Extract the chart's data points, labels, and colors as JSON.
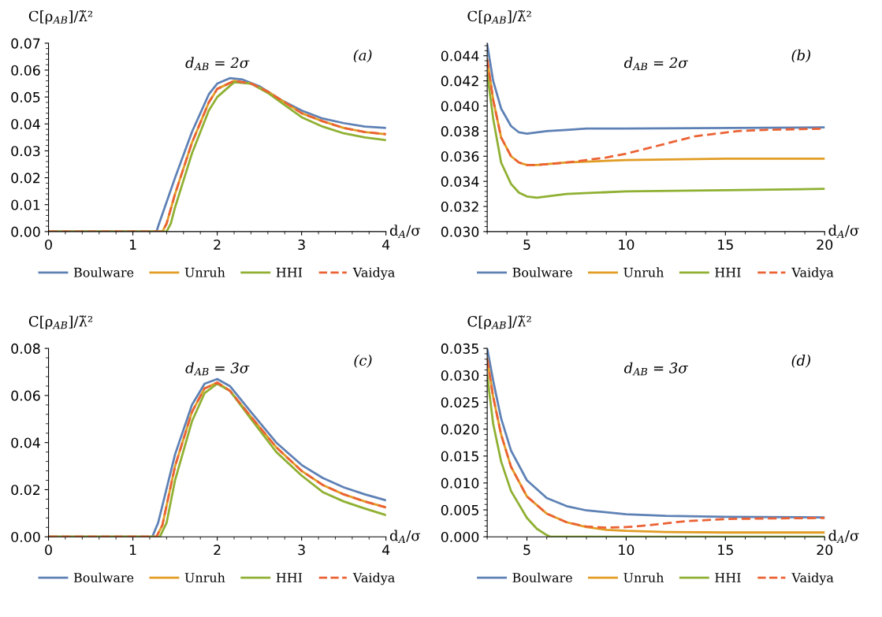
{
  "chart_data": [
    {
      "type": "line",
      "ylabel": "C[ρ$_{AB}$]/λ̃²",
      "xlabel": "d$_{A}$/σ",
      "annotations": [
        "d$_{AB}$ = 2σ",
        "(a)"
      ],
      "legend": "bottom",
      "grid": false,
      "xlim": [
        0,
        4
      ],
      "xticks": [
        0,
        1,
        2,
        3,
        4
      ],
      "ylim": [
        0,
        0.07
      ],
      "yticks": [
        {
          "value": 0,
          "label": "0.00"
        },
        {
          "value": 0.01,
          "label": "0.01"
        },
        {
          "value": 0.02,
          "label": "0.02"
        },
        {
          "value": 0.03,
          "label": "0.03"
        },
        {
          "value": 0.04,
          "label": "0.04"
        },
        {
          "value": 0.05,
          "label": "0.05"
        },
        {
          "value": 0.06,
          "label": "0.06"
        },
        {
          "value": 0.07,
          "label": "0.07"
        }
      ],
      "series": [
        {
          "name": "Boulware",
          "color": "#5e81b5",
          "line_style": "solid",
          "x": [
            0,
            1.28,
            1.3,
            1.5,
            1.7,
            1.9,
            2.0,
            2.15,
            2.3,
            2.5,
            2.75,
            3.0,
            3.25,
            3.5,
            3.75,
            4.0
          ],
          "values": [
            0,
            0,
            0.002,
            0.02,
            0.037,
            0.051,
            0.055,
            0.057,
            0.0565,
            0.054,
            0.049,
            0.045,
            0.042,
            0.0403,
            0.039,
            0.0385
          ]
        },
        {
          "name": "Unruh",
          "color": "#e19c24",
          "line_style": "solid",
          "x": [
            0,
            1.35,
            1.4,
            1.5,
            1.7,
            1.9,
            2.0,
            2.2,
            2.4,
            2.6,
            2.8,
            3.0,
            3.25,
            3.5,
            3.75,
            4.0
          ],
          "values": [
            0,
            0,
            0.003,
            0.014,
            0.033,
            0.048,
            0.053,
            0.056,
            0.055,
            0.052,
            0.048,
            0.044,
            0.041,
            0.0385,
            0.037,
            0.0362
          ]
        },
        {
          "name": "HHI",
          "color": "#8fb032",
          "line_style": "solid",
          "x": [
            0,
            1.4,
            1.45,
            1.5,
            1.7,
            1.9,
            2.0,
            2.2,
            2.4,
            2.6,
            2.8,
            3.0,
            3.25,
            3.5,
            3.75,
            4.0
          ],
          "values": [
            0,
            0,
            0.003,
            0.009,
            0.029,
            0.045,
            0.05,
            0.0555,
            0.055,
            0.0515,
            0.047,
            0.0425,
            0.039,
            0.0365,
            0.035,
            0.034
          ]
        },
        {
          "name": "Vaidya",
          "color": "#eb6235",
          "line_style": "dashed",
          "x": [
            0,
            1.35,
            1.4,
            1.5,
            1.7,
            1.9,
            2.0,
            2.2,
            2.4,
            2.6,
            2.8,
            3.0,
            3.25,
            3.5,
            3.75,
            4.0
          ],
          "values": [
            0,
            0,
            0.003,
            0.014,
            0.033,
            0.048,
            0.053,
            0.056,
            0.055,
            0.052,
            0.048,
            0.044,
            0.041,
            0.0385,
            0.037,
            0.0362
          ]
        }
      ]
    },
    {
      "type": "line",
      "ylabel": "C[ρ$_{AB}$]/λ̃²",
      "xlabel": "d$_{A}$/σ",
      "annotations": [
        "d$_{AB}$ = 2σ",
        "(b)"
      ],
      "legend": "bottom",
      "grid": false,
      "xlim": [
        3,
        20
      ],
      "xticks": [
        5,
        10,
        15,
        20
      ],
      "ylim": [
        0.03,
        0.045
      ],
      "yticks": [
        {
          "value": 0.03,
          "label": "0.030"
        },
        {
          "value": 0.032,
          "label": "0.032"
        },
        {
          "value": 0.034,
          "label": "0.034"
        },
        {
          "value": 0.036,
          "label": "0.036"
        },
        {
          "value": 0.038,
          "label": "0.038"
        },
        {
          "value": 0.04,
          "label": "0.040"
        },
        {
          "value": 0.042,
          "label": "0.042"
        },
        {
          "value": 0.044,
          "label": "0.044"
        }
      ],
      "series": [
        {
          "name": "Boulware",
          "color": "#5e81b5",
          "line_style": "solid",
          "x": [
            3.0,
            3.3,
            3.7,
            4.2,
            4.6,
            5,
            6,
            7,
            8,
            10,
            20
          ],
          "values": [
            0.0449,
            0.042,
            0.0398,
            0.0384,
            0.0379,
            0.0378,
            0.038,
            0.0381,
            0.0382,
            0.0382,
            0.0383
          ]
        },
        {
          "name": "Unruh",
          "color": "#e19c24",
          "line_style": "solid",
          "x": [
            3.0,
            3.3,
            3.7,
            4.2,
            4.6,
            5,
            5.5,
            7,
            10,
            15,
            20
          ],
          "values": [
            0.0437,
            0.0405,
            0.0375,
            0.036,
            0.0355,
            0.0353,
            0.0353,
            0.0355,
            0.0357,
            0.0358,
            0.0358
          ]
        },
        {
          "name": "HHI",
          "color": "#8fb032",
          "line_style": "solid",
          "x": [
            3.0,
            3.3,
            3.7,
            4.2,
            4.6,
            5,
            5.5,
            7,
            10,
            15,
            20
          ],
          "values": [
            0.0426,
            0.039,
            0.0355,
            0.0338,
            0.0331,
            0.0328,
            0.0327,
            0.033,
            0.0332,
            0.0333,
            0.0334
          ]
        },
        {
          "name": "Vaidya",
          "color": "#eb6235",
          "line_style": "dashed",
          "x": [
            3.0,
            3.3,
            3.7,
            4.2,
            4.6,
            5,
            5.5,
            7,
            8,
            9,
            10,
            11.5,
            13.5,
            15.6,
            17,
            20
          ],
          "values": [
            0.0437,
            0.0405,
            0.0375,
            0.036,
            0.0355,
            0.0353,
            0.0353,
            0.0355,
            0.0357,
            0.0359,
            0.0362,
            0.0368,
            0.0376,
            0.038,
            0.0381,
            0.0382
          ]
        }
      ]
    },
    {
      "type": "line",
      "ylabel": "C[ρ$_{AB}$]/λ̃²",
      "xlabel": "d$_{A}$/σ",
      "annotations": [
        "d$_{AB}$ = 3σ",
        "(c)"
      ],
      "legend": "bottom",
      "grid": false,
      "xlim": [
        0,
        4
      ],
      "xticks": [
        0,
        1,
        2,
        3,
        4
      ],
      "ylim": [
        0,
        0.08
      ],
      "yticks": [
        {
          "value": 0,
          "label": "0.00"
        },
        {
          "value": 0.02,
          "label": "0.02"
        },
        {
          "value": 0.04,
          "label": "0.04"
        },
        {
          "value": 0.06,
          "label": "0.06"
        },
        {
          "value": 0.08,
          "label": "0.08"
        }
      ],
      "series": [
        {
          "name": "Boulware",
          "color": "#5e81b5",
          "line_style": "solid",
          "x": [
            0,
            1.23,
            1.3,
            1.5,
            1.7,
            1.85,
            2.0,
            2.15,
            2.4,
            2.7,
            3.0,
            3.25,
            3.5,
            3.75,
            4.0
          ],
          "values": [
            0,
            0,
            0.006,
            0.035,
            0.056,
            0.065,
            0.067,
            0.064,
            0.053,
            0.04,
            0.0305,
            0.025,
            0.021,
            0.018,
            0.0155
          ]
        },
        {
          "name": "Unruh",
          "color": "#e19c24",
          "line_style": "solid",
          "x": [
            0,
            1.28,
            1.35,
            1.5,
            1.7,
            1.85,
            2.0,
            2.15,
            2.4,
            2.7,
            3.0,
            3.25,
            3.5,
            3.75,
            4.0
          ],
          "values": [
            0,
            0,
            0.005,
            0.03,
            0.053,
            0.063,
            0.0655,
            0.062,
            0.051,
            0.038,
            0.028,
            0.022,
            0.018,
            0.015,
            0.0125
          ]
        },
        {
          "name": "HHI",
          "color": "#8fb032",
          "line_style": "solid",
          "x": [
            0,
            1.32,
            1.4,
            1.5,
            1.7,
            1.85,
            2.0,
            2.15,
            2.4,
            2.7,
            3.0,
            3.25,
            3.5,
            3.75,
            4.0
          ],
          "values": [
            0,
            0,
            0.006,
            0.024,
            0.049,
            0.061,
            0.065,
            0.062,
            0.05,
            0.036,
            0.026,
            0.019,
            0.015,
            0.012,
            0.0092
          ]
        },
        {
          "name": "Vaidya",
          "color": "#eb6235",
          "line_style": "dashed",
          "x": [
            0,
            1.28,
            1.35,
            1.5,
            1.7,
            1.85,
            2.0,
            2.15,
            2.4,
            2.7,
            3.0,
            3.25,
            3.5,
            3.75,
            4.0
          ],
          "values": [
            0,
            0,
            0.005,
            0.03,
            0.053,
            0.063,
            0.0655,
            0.062,
            0.051,
            0.038,
            0.028,
            0.022,
            0.018,
            0.015,
            0.0125
          ]
        }
      ]
    },
    {
      "type": "line",
      "ylabel": "C[ρ$_{AB}$]/λ̃²",
      "xlabel": "d$_{A}$/σ",
      "annotations": [
        "d$_{AB}$ = 3σ",
        "(d)"
      ],
      "legend": "bottom",
      "grid": false,
      "xlim": [
        3,
        20
      ],
      "xticks": [
        5,
        10,
        15,
        20
      ],
      "ylim": [
        0,
        0.035
      ],
      "yticks": [
        {
          "value": 0,
          "label": "0.000"
        },
        {
          "value": 0.005,
          "label": "0.005"
        },
        {
          "value": 0.01,
          "label": "0.010"
        },
        {
          "value": 0.015,
          "label": "0.015"
        },
        {
          "value": 0.02,
          "label": "0.020"
        },
        {
          "value": 0.025,
          "label": "0.025"
        },
        {
          "value": 0.03,
          "label": "0.030"
        },
        {
          "value": 0.035,
          "label": "0.035"
        }
      ],
      "series": [
        {
          "name": "Boulware",
          "color": "#5e81b5",
          "line_style": "solid",
          "x": [
            3,
            3.3,
            3.7,
            4.2,
            5,
            6,
            7,
            8,
            10,
            12,
            15,
            20
          ],
          "values": [
            0.035,
            0.029,
            0.022,
            0.016,
            0.0105,
            0.0072,
            0.0057,
            0.0049,
            0.0042,
            0.0039,
            0.0037,
            0.0036
          ]
        },
        {
          "name": "Unruh",
          "color": "#e19c24",
          "line_style": "solid",
          "x": [
            3,
            3.3,
            3.7,
            4.2,
            5,
            6,
            7,
            8,
            9,
            10,
            12,
            15,
            20
          ],
          "values": [
            0.033,
            0.026,
            0.019,
            0.013,
            0.0075,
            0.0043,
            0.0027,
            0.0018,
            0.0013,
            0.0011,
            0.0009,
            0.0008,
            0.0008
          ]
        },
        {
          "name": "HHI",
          "color": "#8fb032",
          "line_style": "solid",
          "x": [
            3,
            3.3,
            3.7,
            4.2,
            5,
            5.5,
            6,
            6.2,
            20
          ],
          "values": [
            0.03,
            0.021,
            0.014,
            0.0085,
            0.0035,
            0.0015,
            0.0003,
            0,
            0
          ]
        },
        {
          "name": "Vaidya",
          "color": "#eb6235",
          "line_style": "dashed",
          "x": [
            3,
            3.3,
            3.7,
            4.2,
            5,
            6,
            7,
            8,
            9,
            10,
            11,
            12,
            13,
            14,
            15,
            17,
            20
          ],
          "values": [
            0.033,
            0.026,
            0.019,
            0.013,
            0.0075,
            0.0043,
            0.0027,
            0.0019,
            0.0017,
            0.0018,
            0.0021,
            0.0025,
            0.0029,
            0.0031,
            0.0033,
            0.0034,
            0.0035
          ]
        }
      ]
    }
  ]
}
